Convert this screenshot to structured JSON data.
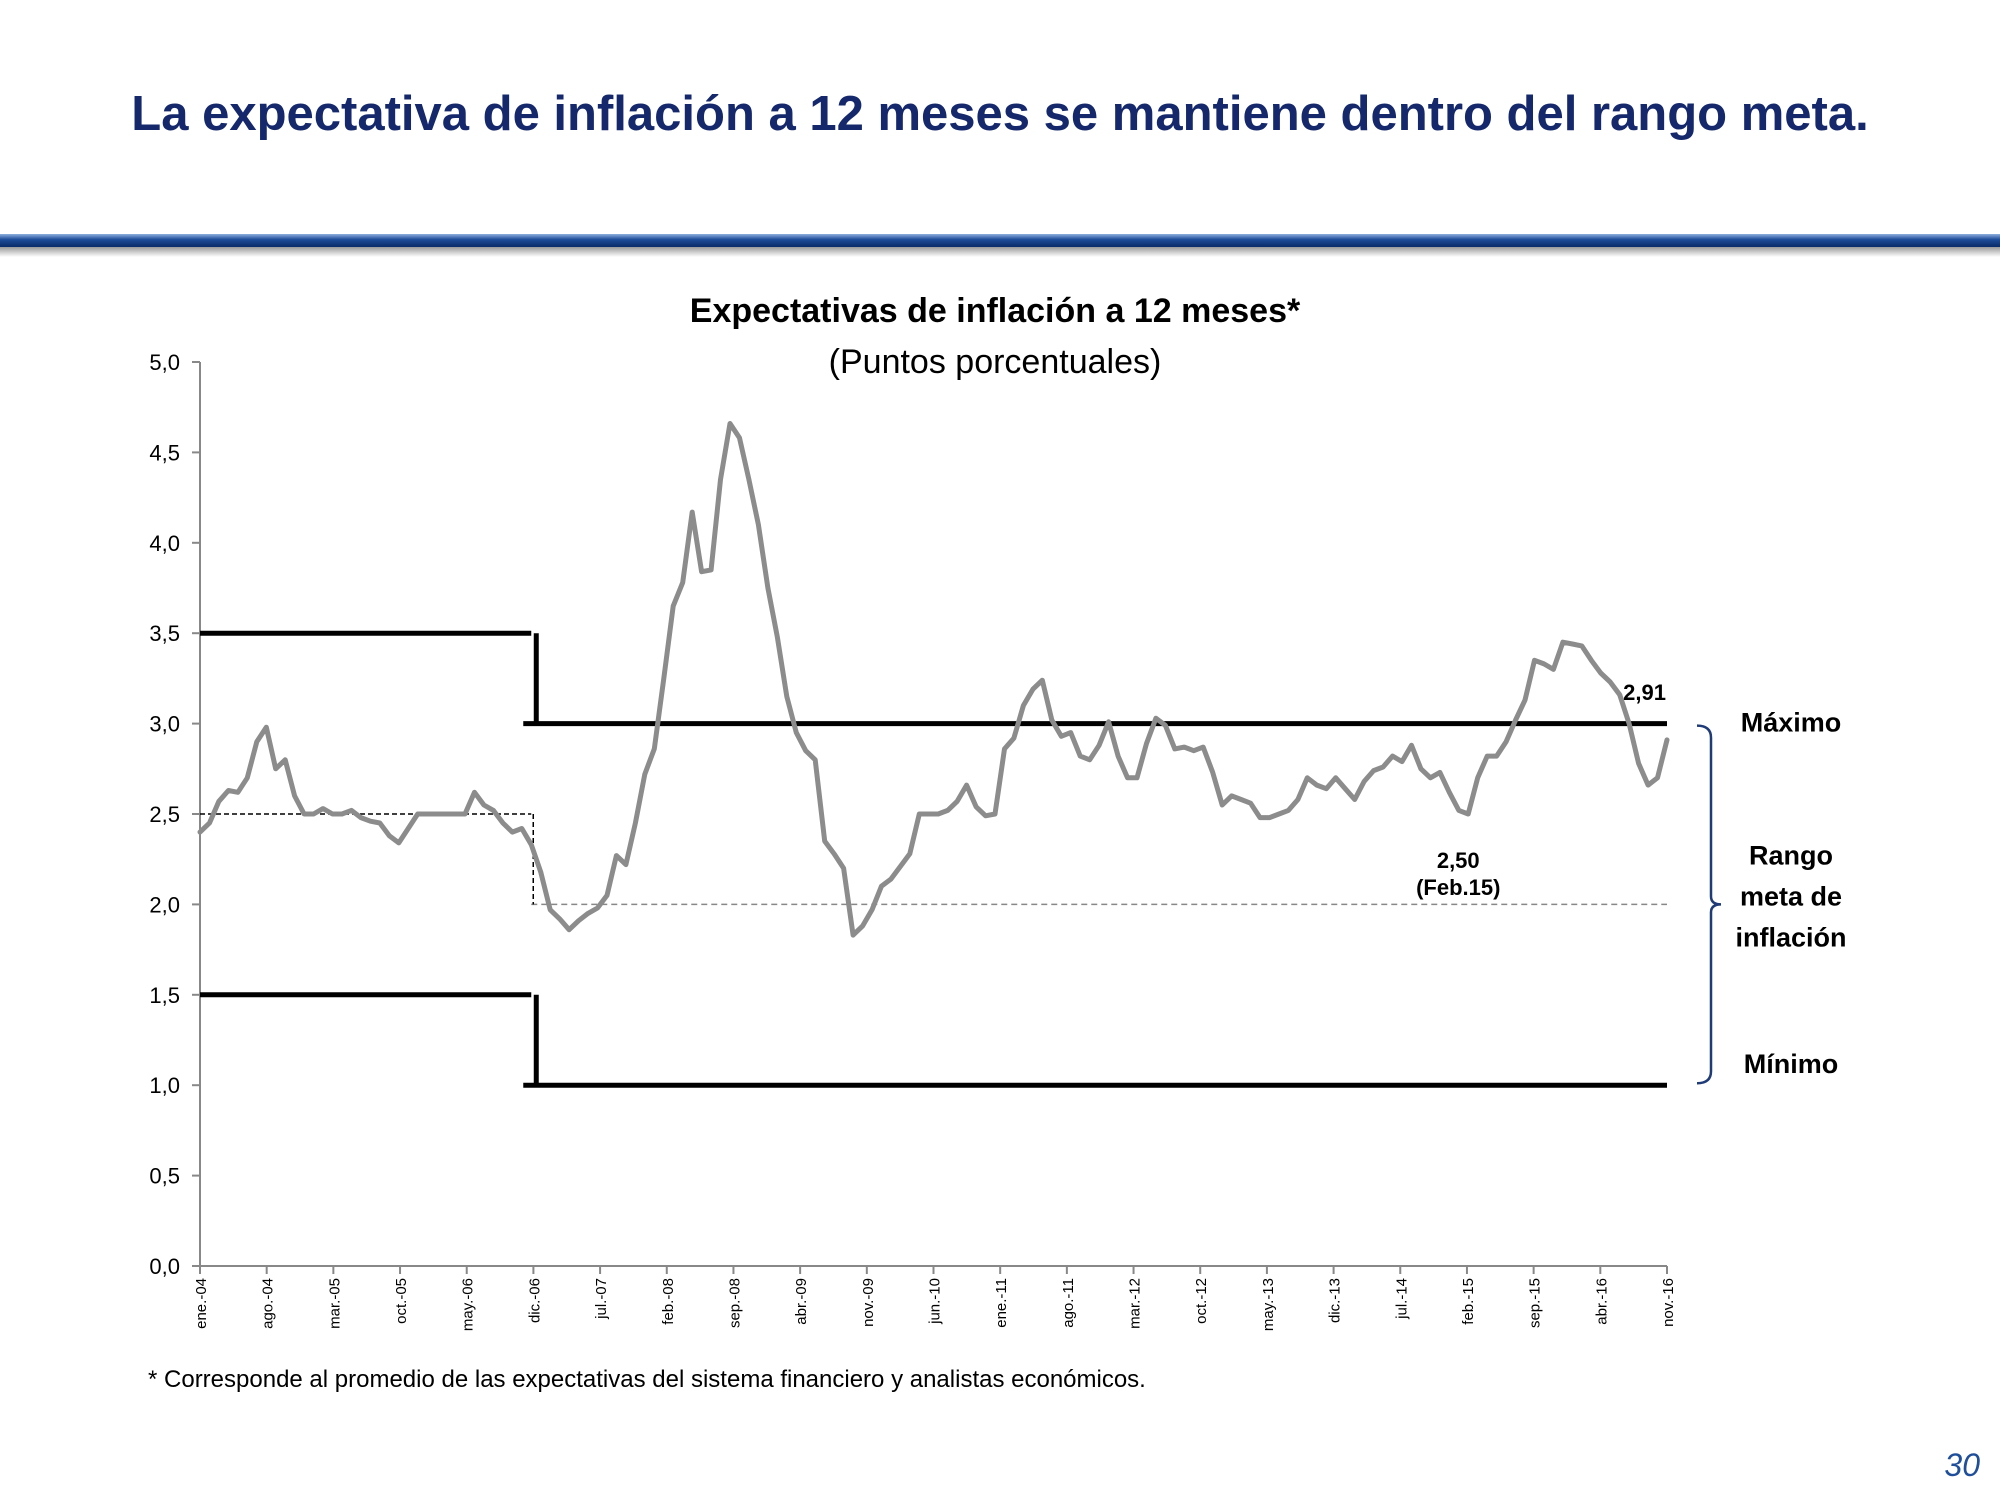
{
  "slide": {
    "title": "La expectativa de inflación a 12 meses se mantiene dentro del rango meta.",
    "footnote": "* Corresponde al promedio de las expectativas del sistema financiero y analistas económicos.",
    "page_number": "30",
    "title_color": "#14286b",
    "rule_color": "#1f4e9a"
  },
  "chart_data": {
    "type": "line",
    "title": "Expectativas de inflación a 12 meses*",
    "subtitle": "(Puntos porcentuales)",
    "xlabel": "",
    "ylabel": "",
    "ylim": [
      0,
      5
    ],
    "yticks": [
      0,
      0.5,
      1,
      1.5,
      2,
      2.5,
      3,
      3.5,
      4,
      4.5,
      5
    ],
    "ytick_labels": [
      "0,0",
      "0,5",
      "1,0",
      "1,5",
      "2,0",
      "2,5",
      "3,0",
      "3,5",
      "4,0",
      "4,5",
      "5,0"
    ],
    "x_start": "ene.-04",
    "x_end": "nov.-16",
    "x_tick_labels": [
      "ene.-04",
      "ago.-04",
      "mar.-05",
      "oct.-05",
      "may.-06",
      "dic.-06",
      "jul.-07",
      "feb.-08",
      "sep.-08",
      "abr.-09",
      "nov.-09",
      "jun.-10",
      "ene.-11",
      "ago.-11",
      "mar.-12",
      "oct.-12",
      "may.-13",
      "dic.-13",
      "jul.-14",
      "feb.-15",
      "sep.-15",
      "abr.-16",
      "nov.-16"
    ],
    "grid": false,
    "series": [
      {
        "color": "#8c8c8c",
        "values": [
          2.4,
          2.45,
          2.57,
          2.63,
          2.62,
          2.7,
          2.9,
          2.98,
          2.75,
          2.8,
          2.6,
          2.5,
          2.5,
          2.53,
          2.5,
          2.5,
          2.52,
          2.48,
          2.46,
          2.45,
          2.38,
          2.34,
          2.42,
          2.5,
          2.5,
          2.5,
          2.5,
          2.5,
          2.5,
          2.62,
          2.55,
          2.52,
          2.45,
          2.4,
          2.42,
          2.33,
          2.18,
          1.97,
          1.92,
          1.86,
          1.91,
          1.95,
          1.98,
          2.05,
          2.27,
          2.22,
          2.45,
          2.72,
          2.86,
          3.25,
          3.65,
          3.78,
          4.17,
          3.84,
          3.85,
          4.35,
          4.66,
          4.58,
          4.35,
          4.1,
          3.75,
          3.48,
          3.15,
          2.95,
          2.85,
          2.8,
          2.35,
          2.28,
          2.2,
          1.83,
          1.88,
          1.97,
          2.1,
          2.14,
          2.21,
          2.28,
          2.5,
          2.5,
          2.5,
          2.52,
          2.57,
          2.66,
          2.54,
          2.49,
          2.5,
          2.86,
          2.92,
          3.1,
          3.19,
          3.24,
          3.02,
          2.93,
          2.95,
          2.82,
          2.8,
          2.88,
          3.01,
          2.82,
          2.7,
          2.7,
          2.89,
          3.03,
          2.99,
          2.86,
          2.87,
          2.85,
          2.87,
          2.73,
          2.55,
          2.6,
          2.58,
          2.56,
          2.48,
          2.48,
          2.5,
          2.52,
          2.58,
          2.7,
          2.66,
          2.64,
          2.7,
          2.64,
          2.58,
          2.68,
          2.74,
          2.76,
          2.82,
          2.79,
          2.88,
          2.75,
          2.7,
          2.73,
          2.62,
          2.52,
          2.5,
          2.7,
          2.82,
          2.82,
          2.9,
          3.02,
          3.13,
          3.35,
          3.33,
          3.3,
          3.45,
          3.44,
          3.43,
          3.35,
          3.28,
          3.23,
          3.16,
          3.0,
          2.78,
          2.66,
          2.7,
          2.91
        ]
      }
    ],
    "target_range": [
      {
        "from": "ene.-04",
        "to": "dic.-06",
        "max": 3.5,
        "center": 2.5,
        "min": 1.5
      },
      {
        "from": "dic.-06",
        "to": "nov.-16",
        "max": 3.0,
        "center": 2.0,
        "min": 1.0
      }
    ],
    "annotations": [
      {
        "text": "2,91",
        "x": "nov.-16",
        "y": 2.91
      },
      {
        "text": "2,50",
        "subtext": "(Feb.15)",
        "x": "feb.-15",
        "y": 2.5
      }
    ],
    "range_labels": {
      "max": "Máximo",
      "range": [
        "Rango",
        "meta de",
        "inflación"
      ],
      "min": "Mínimo"
    }
  }
}
